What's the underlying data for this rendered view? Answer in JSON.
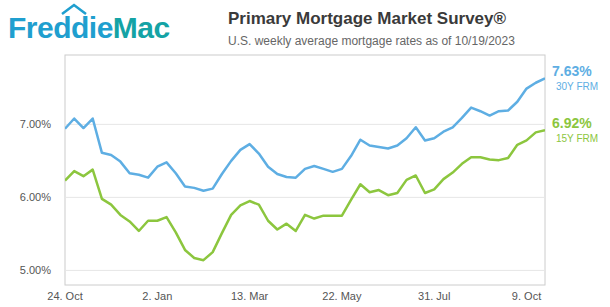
{
  "logo": [
    "Freddie",
    "Mac"
  ],
  "chart_data": {
    "type": "line",
    "title": "Primary Mortgage Market Survey®",
    "subtitle": "U.S. weekly average mortgage rates as of 10/19/2023",
    "categories": [
      "24. Oct",
      null,
      null,
      null,
      null,
      null,
      null,
      null,
      null,
      null,
      "2. Jan",
      null,
      null,
      null,
      null,
      null,
      null,
      null,
      null,
      null,
      "13. Mar",
      null,
      null,
      null,
      null,
      null,
      null,
      null,
      null,
      null,
      "22. May",
      null,
      null,
      null,
      null,
      null,
      null,
      null,
      null,
      null,
      "31. Jul",
      null,
      null,
      null,
      null,
      null,
      null,
      null,
      null,
      null,
      "9. Oct",
      null,
      null
    ],
    "series": [
      {
        "name": "30Y FRM",
        "color": "#5eaee3",
        "values": [
          6.94,
          7.08,
          6.95,
          7.08,
          6.61,
          6.58,
          6.49,
          6.33,
          6.31,
          6.27,
          6.42,
          6.48,
          6.33,
          6.15,
          6.13,
          6.09,
          6.12,
          6.32,
          6.5,
          6.65,
          6.73,
          6.6,
          6.42,
          6.32,
          6.28,
          6.27,
          6.39,
          6.43,
          6.39,
          6.35,
          6.39,
          6.57,
          6.79,
          6.71,
          6.69,
          6.67,
          6.71,
          6.81,
          6.96,
          6.78,
          6.81,
          6.9,
          6.96,
          7.09,
          7.23,
          7.18,
          7.12,
          7.18,
          7.19,
          7.31,
          7.49,
          7.57,
          7.63
        ],
        "value_labels": [
          null,
          null,
          null,
          null,
          null,
          null,
          null,
          null,
          null,
          null,
          null,
          null,
          null,
          null,
          null,
          null,
          null,
          null,
          null,
          null,
          null,
          null,
          null,
          null,
          null,
          null,
          null,
          null,
          null,
          null,
          null,
          null,
          null,
          null,
          null,
          null,
          null,
          null,
          null,
          null,
          null,
          null,
          null,
          null,
          null,
          null,
          null,
          null,
          null,
          null,
          null,
          null,
          "7.63%"
        ]
      },
      {
        "name": "15Y FRM",
        "color": "#8cc63e",
        "values": [
          6.23,
          6.36,
          6.29,
          6.38,
          5.98,
          5.9,
          5.76,
          5.67,
          5.54,
          5.68,
          5.68,
          5.73,
          5.52,
          5.28,
          5.17,
          5.14,
          5.25,
          5.51,
          5.76,
          5.89,
          5.95,
          5.9,
          5.68,
          5.56,
          5.64,
          5.54,
          5.76,
          5.71,
          5.75,
          5.75,
          5.75,
          5.97,
          6.18,
          6.07,
          6.1,
          6.03,
          6.06,
          6.24,
          6.3,
          6.06,
          6.11,
          6.25,
          6.34,
          6.46,
          6.55,
          6.55,
          6.52,
          6.51,
          6.54,
          6.72,
          6.78,
          6.89,
          6.92
        ],
        "value_labels": [
          null,
          null,
          null,
          null,
          null,
          null,
          null,
          null,
          null,
          null,
          null,
          null,
          null,
          null,
          null,
          null,
          null,
          null,
          null,
          null,
          null,
          null,
          null,
          null,
          null,
          null,
          null,
          null,
          null,
          null,
          null,
          null,
          null,
          null,
          null,
          null,
          null,
          null,
          null,
          null,
          null,
          null,
          null,
          null,
          null,
          null,
          null,
          null,
          null,
          null,
          null,
          null,
          "6.92%"
        ]
      }
    ],
    "ylim": [
      4.8,
      7.95
    ],
    "yticks": [
      {
        "value": 5,
        "label": "5.00%"
      },
      {
        "value": 6,
        "label": "6.00%"
      },
      {
        "value": 7,
        "label": "7.00%"
      }
    ],
    "grid": true
  }
}
